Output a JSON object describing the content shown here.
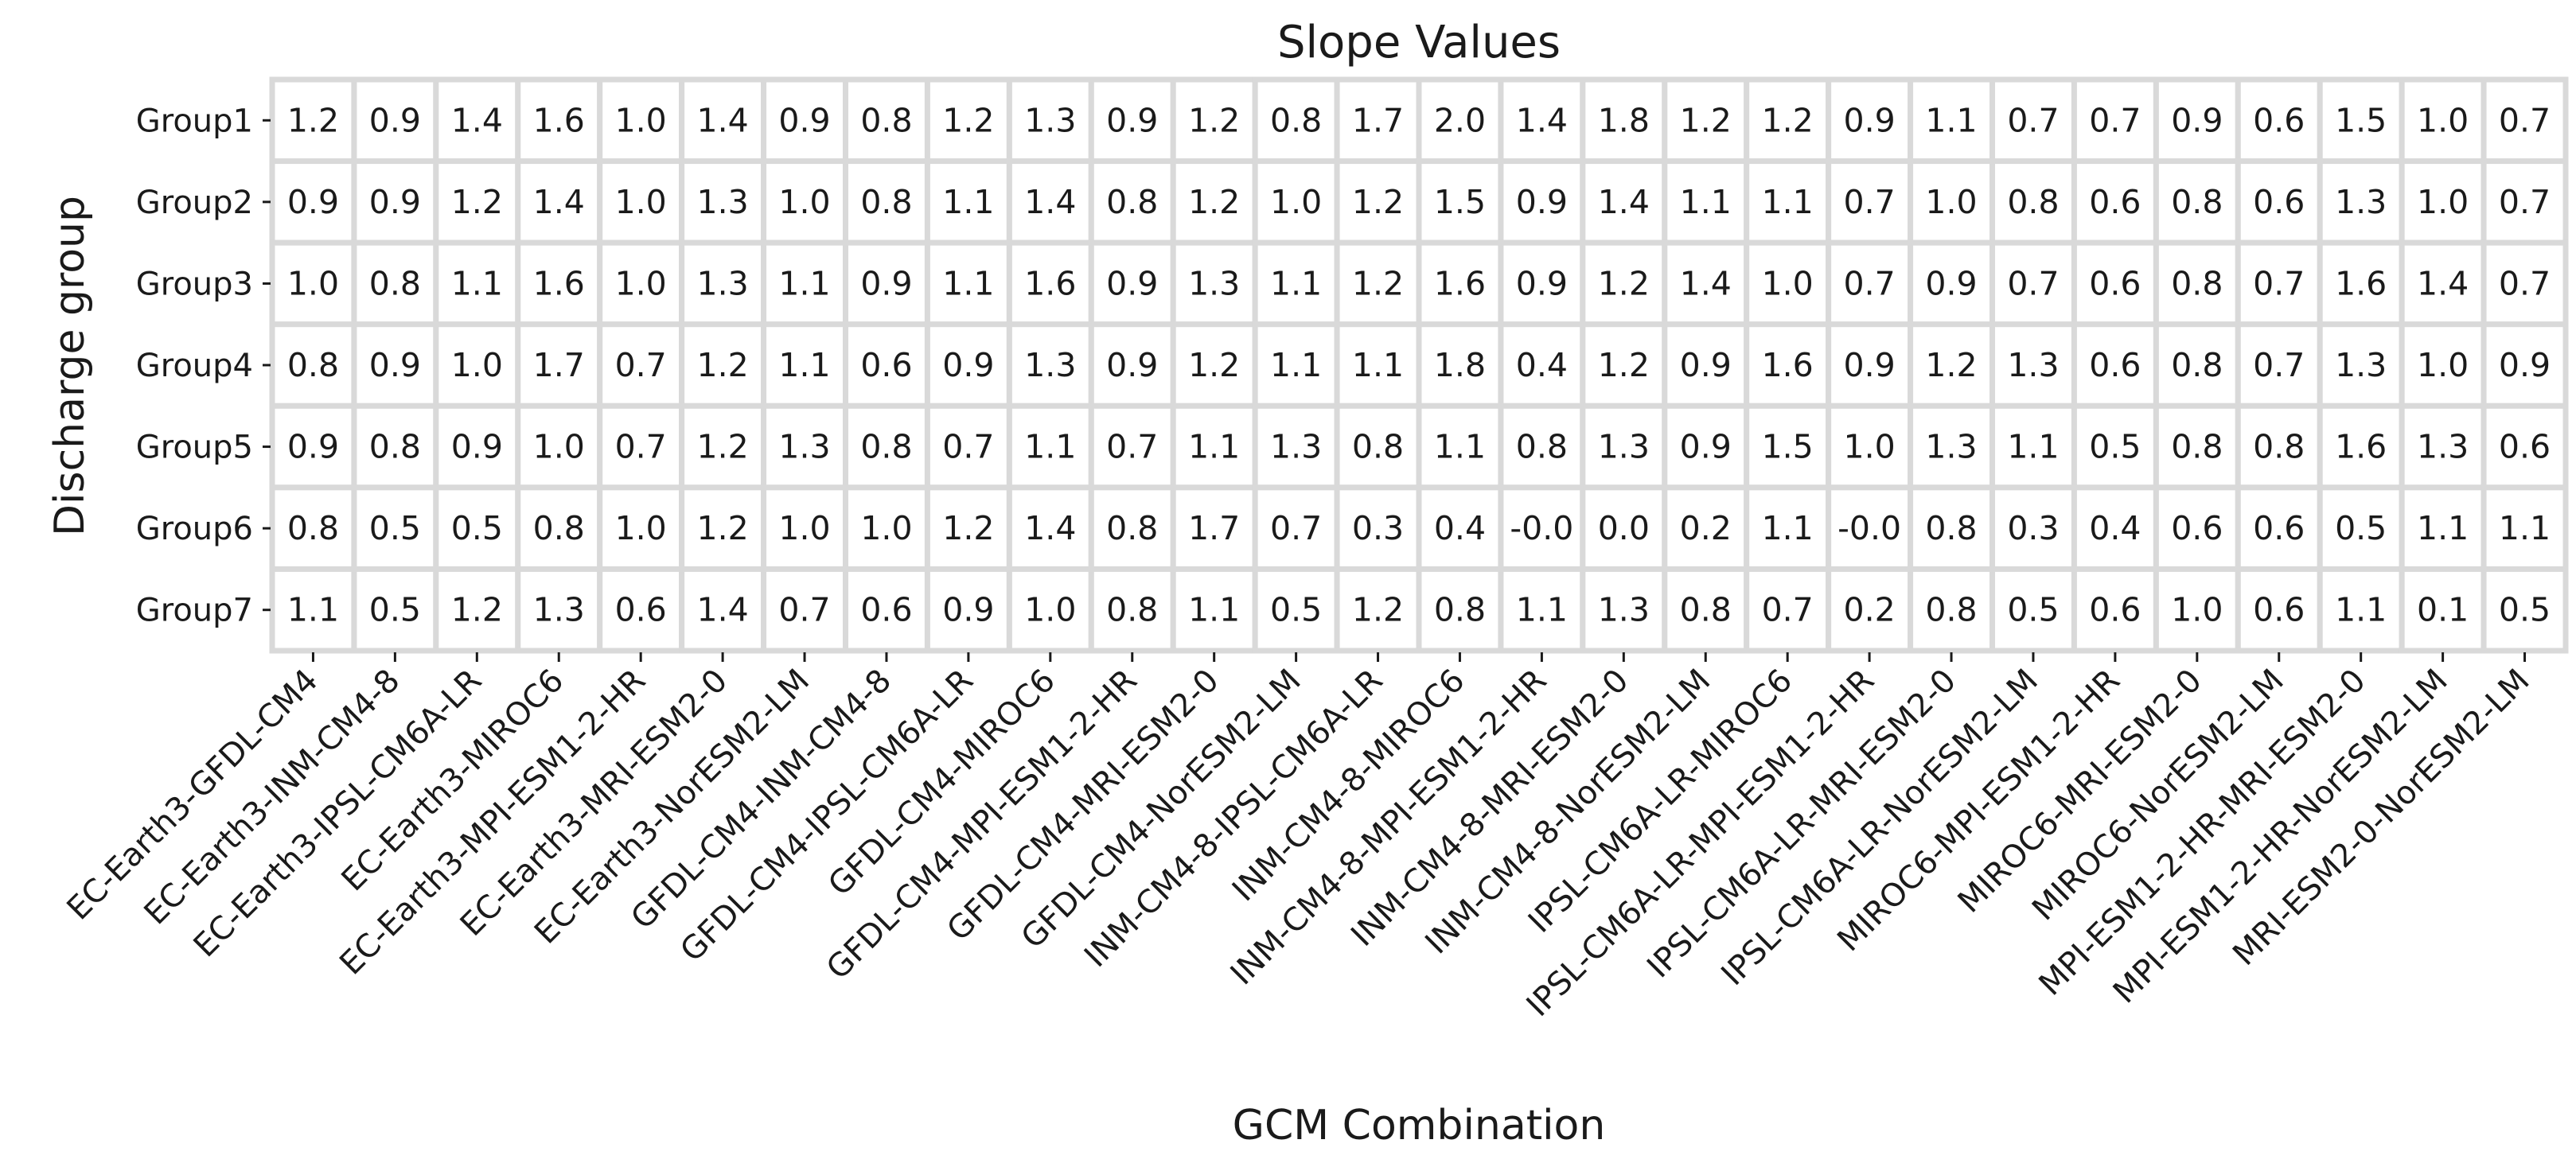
{
  "chart_data": {
    "type": "table",
    "title": "Slope Values",
    "xlabel": "GCM Combination",
    "ylabel": "Discharge group",
    "rows": [
      "Group1",
      "Group2",
      "Group3",
      "Group4",
      "Group5",
      "Group6",
      "Group7"
    ],
    "columns": [
      "EC-Earth3-GFDL-CM4",
      "EC-Earth3-INM-CM4-8",
      "EC-Earth3-IPSL-CM6A-LR",
      "EC-Earth3-MIROC6",
      "EC-Earth3-MPI-ESM1-2-HR",
      "EC-Earth3-MRI-ESM2-0",
      "EC-Earth3-NorESM2-LM",
      "GFDL-CM4-INM-CM4-8",
      "GFDL-CM4-IPSL-CM6A-LR",
      "GFDL-CM4-MIROC6",
      "GFDL-CM4-MPI-ESM1-2-HR",
      "GFDL-CM4-MRI-ESM2-0",
      "GFDL-CM4-NorESM2-LM",
      "INM-CM4-8-IPSL-CM6A-LR",
      "INM-CM4-8-MIROC6",
      "INM-CM4-8-MPI-ESM1-2-HR",
      "INM-CM4-8-MRI-ESM2-0",
      "INM-CM4-8-NorESM2-LM",
      "IPSL-CM6A-LR-MIROC6",
      "IPSL-CM6A-LR-MPI-ESM1-2-HR",
      "IPSL-CM6A-LR-MRI-ESM2-0",
      "IPSL-CM6A-LR-NorESM2-LM",
      "MIROC6-MPI-ESM1-2-HR",
      "MIROC6-MRI-ESM2-0",
      "MIROC6-NorESM2-LM",
      "MPI-ESM1-2-HR-MRI-ESM2-0",
      "MPI-ESM1-2-HR-NorESM2-LM",
      "MRI-ESM2-0-NorESM2-LM"
    ],
    "values": [
      [
        "1.2",
        "0.9",
        "1.4",
        "1.6",
        "1.0",
        "1.4",
        "0.9",
        "0.8",
        "1.2",
        "1.3",
        "0.9",
        "1.2",
        "0.8",
        "1.7",
        "2.0",
        "1.4",
        "1.8",
        "1.2",
        "1.2",
        "0.9",
        "1.1",
        "0.7",
        "0.7",
        "0.9",
        "0.6",
        "1.5",
        "1.0",
        "0.7"
      ],
      [
        "0.9",
        "0.9",
        "1.2",
        "1.4",
        "1.0",
        "1.3",
        "1.0",
        "0.8",
        "1.1",
        "1.4",
        "0.8",
        "1.2",
        "1.0",
        "1.2",
        "1.5",
        "0.9",
        "1.4",
        "1.1",
        "1.1",
        "0.7",
        "1.0",
        "0.8",
        "0.6",
        "0.8",
        "0.6",
        "1.3",
        "1.0",
        "0.7"
      ],
      [
        "1.0",
        "0.8",
        "1.1",
        "1.6",
        "1.0",
        "1.3",
        "1.1",
        "0.9",
        "1.1",
        "1.6",
        "0.9",
        "1.3",
        "1.1",
        "1.2",
        "1.6",
        "0.9",
        "1.2",
        "1.4",
        "1.0",
        "0.7",
        "0.9",
        "0.7",
        "0.6",
        "0.8",
        "0.7",
        "1.6",
        "1.4",
        "0.7"
      ],
      [
        "0.8",
        "0.9",
        "1.0",
        "1.7",
        "0.7",
        "1.2",
        "1.1",
        "0.6",
        "0.9",
        "1.3",
        "0.9",
        "1.2",
        "1.1",
        "1.1",
        "1.8",
        "0.4",
        "1.2",
        "0.9",
        "1.6",
        "0.9",
        "1.2",
        "1.3",
        "0.6",
        "0.8",
        "0.7",
        "1.3",
        "1.0",
        "0.9"
      ],
      [
        "0.9",
        "0.8",
        "0.9",
        "1.0",
        "0.7",
        "1.2",
        "1.3",
        "0.8",
        "0.7",
        "1.1",
        "0.7",
        "1.1",
        "1.3",
        "0.8",
        "1.1",
        "0.8",
        "1.3",
        "0.9",
        "1.5",
        "1.0",
        "1.3",
        "1.1",
        "0.5",
        "0.8",
        "0.8",
        "1.6",
        "1.3",
        "0.6"
      ],
      [
        "0.8",
        "0.5",
        "0.5",
        "0.8",
        "1.0",
        "1.2",
        "1.0",
        "1.0",
        "1.2",
        "1.4",
        "0.8",
        "1.7",
        "0.7",
        "0.3",
        "0.4",
        "-0.0",
        "0.0",
        "0.2",
        "1.1",
        "-0.0",
        "0.8",
        "0.3",
        "0.4",
        "0.6",
        "0.6",
        "0.5",
        "1.1",
        "1.1"
      ],
      [
        "1.1",
        "0.5",
        "1.2",
        "1.3",
        "0.6",
        "1.4",
        "0.7",
        "0.6",
        "0.9",
        "1.0",
        "0.8",
        "1.1",
        "0.5",
        "1.2",
        "0.8",
        "1.1",
        "1.3",
        "0.8",
        "0.7",
        "0.2",
        "0.8",
        "0.5",
        "0.6",
        "1.0",
        "0.6",
        "1.1",
        "0.1",
        "0.5"
      ]
    ],
    "grid": true,
    "legend": "none",
    "colors": {
      "cell_fill": "#ffffff",
      "cell_border": "#d9d9d9",
      "text": "#1a1a1a"
    }
  }
}
